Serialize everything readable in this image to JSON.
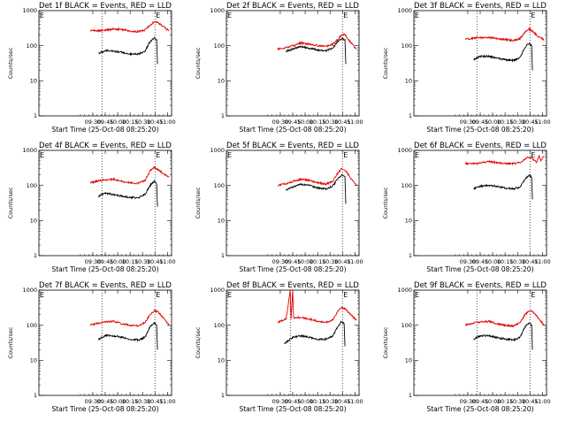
{
  "figure": {
    "start_time_label": "Start Time (25-Oct-08 08:25:20)",
    "y_axis_label": "Counts/sec",
    "marker_label": "E",
    "colors": {
      "events": "#000000",
      "lld": "#e00000"
    }
  },
  "chart_data": [
    {
      "type": "line",
      "title": "Det 1f BLACK = Events, RED = LLD",
      "xlabel": "Start Time (25-Oct-08 08:25:20)",
      "ylabel": "Counts/sec",
      "yscale": "log",
      "ylim": [
        1,
        1000
      ],
      "yticks": [
        "1",
        "10",
        "100",
        "1000"
      ],
      "xlim": [
        "08:25",
        "11:05"
      ],
      "xticks": [
        "09:30",
        "09:45",
        "10:00",
        "10:15",
        "10:30",
        "10:45",
        "11:00"
      ],
      "markers": [
        {
          "time": "09:41",
          "label": ""
        },
        {
          "time": "10:45",
          "label": "E"
        }
      ],
      "series": [
        {
          "color": "#e00000",
          "x": [
            "09:27",
            "09:40",
            "09:55",
            "10:05",
            "10:15",
            "10:25",
            "10:33",
            "10:39",
            "10:44",
            "10:48",
            "10:52",
            "10:57",
            "11:02"
          ],
          "values": [
            270,
            270,
            300,
            290,
            260,
            250,
            280,
            380,
            480,
            470,
            400,
            320,
            260
          ]
        },
        {
          "color": "#000000",
          "x": [
            "09:37",
            "09:45",
            "09:55",
            "10:05",
            "10:15",
            "10:25",
            "10:33",
            "10:39",
            "10:44",
            "10:47",
            "10:48"
          ],
          "values": [
            60,
            72,
            70,
            65,
            58,
            58,
            70,
            130,
            170,
            150,
            30
          ]
        }
      ]
    },
    {
      "type": "line",
      "title": "Det 2f BLACK = Events, RED = LLD",
      "xlabel": "Start Time (25-Oct-08 08:25:20)",
      "ylabel": "Counts/sec",
      "yscale": "log",
      "ylim": [
        1,
        1000
      ],
      "yticks": [
        "1",
        "10",
        "100",
        "1000"
      ],
      "xlim": [
        "08:25",
        "11:05"
      ],
      "xticks": [
        "09:30",
        "09:45",
        "10:00",
        "10:15",
        "10:30",
        "10:45",
        "11:00"
      ],
      "markers": [
        {
          "time": "10:45",
          "label": "E"
        }
      ],
      "series": [
        {
          "color": "#e00000",
          "x": [
            "09:27",
            "09:35",
            "09:45",
            "09:55",
            "10:05",
            "10:15",
            "10:25",
            "10:33",
            "10:39",
            "10:44",
            "10:48",
            "10:53",
            "11:02"
          ],
          "values": [
            80,
            85,
            100,
            120,
            110,
            100,
            95,
            110,
            150,
            200,
            210,
            140,
            80
          ]
        },
        {
          "color": "#000000",
          "x": [
            "09:37",
            "09:45",
            "09:55",
            "10:05",
            "10:15",
            "10:25",
            "10:33",
            "10:39",
            "10:44",
            "10:48",
            "10:49"
          ],
          "values": [
            70,
            80,
            95,
            85,
            75,
            72,
            85,
            130,
            160,
            150,
            30
          ]
        }
      ]
    },
    {
      "type": "line",
      "title": "Det 3f BLACK = Events, RED = LLD",
      "xlabel": "Start Time (25-Oct-08 08:25:20)",
      "ylabel": "Counts/sec",
      "yscale": "log",
      "ylim": [
        1,
        1000
      ],
      "yticks": [
        "1",
        "10",
        "100",
        "1000"
      ],
      "xlim": [
        "08:25",
        "11:05"
      ],
      "xticks": [
        "09:30",
        "09:45",
        "10:00",
        "10:15",
        "10:30",
        "10:45",
        "11:00"
      ],
      "markers": [
        {
          "time": "09:41",
          "label": ""
        },
        {
          "time": "10:45",
          "label": "E"
        }
      ],
      "series": [
        {
          "color": "#e00000",
          "x": [
            "09:27",
            "09:40",
            "09:55",
            "10:05",
            "10:15",
            "10:25",
            "10:33",
            "10:39",
            "10:44",
            "10:49",
            "10:55",
            "11:02"
          ],
          "values": [
            150,
            170,
            170,
            160,
            150,
            140,
            160,
            240,
            300,
            250,
            180,
            150
          ]
        },
        {
          "color": "#000000",
          "x": [
            "09:37",
            "09:45",
            "09:55",
            "10:05",
            "10:15",
            "10:25",
            "10:33",
            "10:39",
            "10:44",
            "10:47",
            "10:48"
          ],
          "values": [
            40,
            50,
            50,
            45,
            40,
            38,
            45,
            90,
            120,
            100,
            20
          ]
        }
      ]
    },
    {
      "type": "line",
      "title": "Det 4f BLACK = Events, RED = LLD",
      "xlabel": "Start Time (25-Oct-08 08:25:20)",
      "ylabel": "Counts/sec",
      "yscale": "log",
      "ylim": [
        1,
        1000
      ],
      "yticks": [
        "1",
        "10",
        "100",
        "1000"
      ],
      "xlim": [
        "08:25",
        "11:05"
      ],
      "xticks": [
        "09:30",
        "09:45",
        "10:00",
        "10:15",
        "10:30",
        "10:45",
        "11:00"
      ],
      "markers": [
        {
          "time": "09:41",
          "label": ""
        },
        {
          "time": "10:45",
          "label": "E"
        }
      ],
      "series": [
        {
          "color": "#e00000",
          "x": [
            "09:27",
            "09:40",
            "09:55",
            "10:05",
            "10:15",
            "10:25",
            "10:33",
            "10:39",
            "10:44",
            "10:49",
            "10:55",
            "11:02"
          ],
          "values": [
            120,
            140,
            150,
            130,
            120,
            115,
            140,
            260,
            330,
            280,
            220,
            170
          ]
        },
        {
          "color": "#000000",
          "x": [
            "09:37",
            "09:45",
            "09:55",
            "10:05",
            "10:15",
            "10:25",
            "10:33",
            "10:39",
            "10:44",
            "10:47",
            "10:48"
          ],
          "values": [
            50,
            60,
            55,
            50,
            45,
            45,
            55,
            100,
            130,
            110,
            25
          ]
        }
      ]
    },
    {
      "type": "line",
      "title": "Det 5f BLACK = Events, RED = LLD",
      "xlabel": "Start Time (25-Oct-08 08:25:20)",
      "ylabel": "Counts/sec",
      "yscale": "log",
      "ylim": [
        1,
        1000
      ],
      "yticks": [
        "1",
        "10",
        "100",
        "1000"
      ],
      "xlim": [
        "08:25",
        "11:05"
      ],
      "xticks": [
        "09:30",
        "09:45",
        "10:00",
        "10:15",
        "10:30",
        "10:45",
        "11:00"
      ],
      "markers": [
        {
          "time": "10:45",
          "label": "E"
        }
      ],
      "series": [
        {
          "color": "#e00000",
          "x": [
            "09:27",
            "09:35",
            "09:45",
            "09:55",
            "10:05",
            "10:15",
            "10:25",
            "10:33",
            "10:39",
            "10:44",
            "10:49",
            "10:55",
            "11:02"
          ],
          "values": [
            100,
            110,
            130,
            150,
            140,
            120,
            110,
            130,
            220,
            300,
            260,
            160,
            100
          ]
        },
        {
          "color": "#000000",
          "x": [
            "09:37",
            "09:45",
            "09:55",
            "10:05",
            "10:15",
            "10:25",
            "10:33",
            "10:39",
            "10:44",
            "10:48",
            "10:49"
          ],
          "values": [
            75,
            90,
            110,
            100,
            85,
            80,
            95,
            150,
            200,
            180,
            30
          ]
        }
      ]
    },
    {
      "type": "line",
      "title": "Det 6f BLACK = Events, RED = LLD",
      "xlabel": "Start Time (25-Oct-08 08:25:20)",
      "ylabel": "Counts/sec",
      "yscale": "log",
      "ylim": [
        1,
        1000
      ],
      "yticks": [
        "1",
        "10",
        "100",
        "1000"
      ],
      "xlim": [
        "08:25",
        "11:05"
      ],
      "xticks": [
        "09:30",
        "09:45",
        "10:00",
        "10:15",
        "10:30",
        "10:45",
        "11:00"
      ],
      "markers": [
        {
          "time": "10:45",
          "label": "E"
        }
      ],
      "series": [
        {
          "color": "#e00000",
          "x": [
            "09:27",
            "09:40",
            "09:55",
            "10:05",
            "10:15",
            "10:25",
            "10:33",
            "10:39",
            "10:44",
            "10:49",
            "10:53",
            "10:56",
            "10:58",
            "11:02"
          ],
          "values": [
            420,
            420,
            480,
            450,
            420,
            420,
            450,
            560,
            650,
            560,
            460,
            700,
            500,
            700
          ]
        },
        {
          "color": "#000000",
          "x": [
            "09:37",
            "09:45",
            "09:55",
            "10:05",
            "10:15",
            "10:25",
            "10:33",
            "10:39",
            "10:44",
            "10:47",
            "10:48"
          ],
          "values": [
            80,
            95,
            100,
            95,
            85,
            80,
            90,
            150,
            200,
            170,
            40
          ]
        }
      ]
    },
    {
      "type": "line",
      "title": "Det 7f BLACK = Events, RED = LLD",
      "xlabel": "Start Time (25-Oct-08 08:25:20)",
      "ylabel": "Counts/sec",
      "yscale": "log",
      "ylim": [
        1,
        1000
      ],
      "yticks": [
        "1",
        "10",
        "100",
        "1000"
      ],
      "xlim": [
        "08:25",
        "11:05"
      ],
      "xticks": [
        "09:30",
        "09:45",
        "10:00",
        "10:15",
        "10:30",
        "10:45",
        "11:00"
      ],
      "markers": [
        {
          "time": "09:41",
          "label": ""
        },
        {
          "time": "10:45",
          "label": "E"
        }
      ],
      "series": [
        {
          "color": "#e00000",
          "x": [
            "09:27",
            "09:40",
            "09:55",
            "10:05",
            "10:15",
            "10:25",
            "10:33",
            "10:39",
            "10:44",
            "10:49",
            "10:55",
            "11:02"
          ],
          "values": [
            100,
            120,
            130,
            110,
            100,
            95,
            120,
            200,
            260,
            240,
            160,
            100
          ]
        },
        {
          "color": "#000000",
          "x": [
            "09:37",
            "09:45",
            "09:55",
            "10:05",
            "10:15",
            "10:25",
            "10:33",
            "10:39",
            "10:44",
            "10:47",
            "10:48"
          ],
          "values": [
            40,
            50,
            50,
            45,
            40,
            38,
            45,
            90,
            120,
            100,
            20
          ]
        }
      ]
    },
    {
      "type": "line",
      "title": "Det 8f BLACK = Events, RED = LLD",
      "xlabel": "Start Time (25-Oct-08 08:25:20)",
      "ylabel": "Counts/sec",
      "yscale": "log",
      "ylim": [
        1,
        1000
      ],
      "yticks": [
        "1",
        "10",
        "100",
        "1000"
      ],
      "xlim": [
        "08:25",
        "11:05"
      ],
      "xticks": [
        "09:30",
        "09:45",
        "10:00",
        "10:15",
        "10:30",
        "10:45",
        "11:00"
      ],
      "markers": [
        {
          "time": "09:42",
          "label": ""
        },
        {
          "time": "10:45",
          "label": "E"
        }
      ],
      "series": [
        {
          "color": "#e00000",
          "x": [
            "09:27",
            "09:37",
            "09:42",
            "09:43",
            "09:45",
            "09:46",
            "09:55",
            "10:05",
            "10:15",
            "10:25",
            "10:33",
            "10:39",
            "10:44",
            "10:49",
            "10:55",
            "11:02"
          ],
          "values": [
            120,
            150,
            1000,
            150,
            1000,
            160,
            170,
            150,
            130,
            120,
            140,
            240,
            330,
            280,
            200,
            140
          ]
        },
        {
          "color": "#000000",
          "x": [
            "09:35",
            "09:45",
            "09:55",
            "10:05",
            "10:15",
            "10:25",
            "10:33",
            "10:39",
            "10:44",
            "10:47",
            "10:48"
          ],
          "values": [
            30,
            45,
            50,
            45,
            40,
            40,
            48,
            90,
            130,
            110,
            25
          ]
        }
      ]
    },
    {
      "type": "line",
      "title": "Det 9f BLACK = Events, RED = LLD",
      "xlabel": "Start Time (25-Oct-08 08:25:20)",
      "ylabel": "Counts/sec",
      "yscale": "log",
      "ylim": [
        1,
        1000
      ],
      "yticks": [
        "1",
        "10",
        "100",
        "1000"
      ],
      "xlim": [
        "08:25",
        "11:05"
      ],
      "xticks": [
        "09:30",
        "09:45",
        "10:00",
        "10:15",
        "10:30",
        "10:45",
        "11:00"
      ],
      "markers": [
        {
          "time": "09:41",
          "label": ""
        },
        {
          "time": "10:45",
          "label": "E"
        }
      ],
      "series": [
        {
          "color": "#e00000",
          "x": [
            "09:27",
            "09:40",
            "09:55",
            "10:05",
            "10:15",
            "10:25",
            "10:33",
            "10:39",
            "10:44",
            "10:49",
            "10:55",
            "11:02"
          ],
          "values": [
            100,
            120,
            130,
            110,
            100,
            95,
            120,
            200,
            260,
            240,
            160,
            100
          ]
        },
        {
          "color": "#000000",
          "x": [
            "09:37",
            "09:45",
            "09:55",
            "10:05",
            "10:15",
            "10:25",
            "10:33",
            "10:39",
            "10:44",
            "10:47",
            "10:48"
          ],
          "values": [
            40,
            50,
            50,
            45,
            40,
            38,
            45,
            90,
            120,
            100,
            20
          ]
        }
      ]
    }
  ]
}
